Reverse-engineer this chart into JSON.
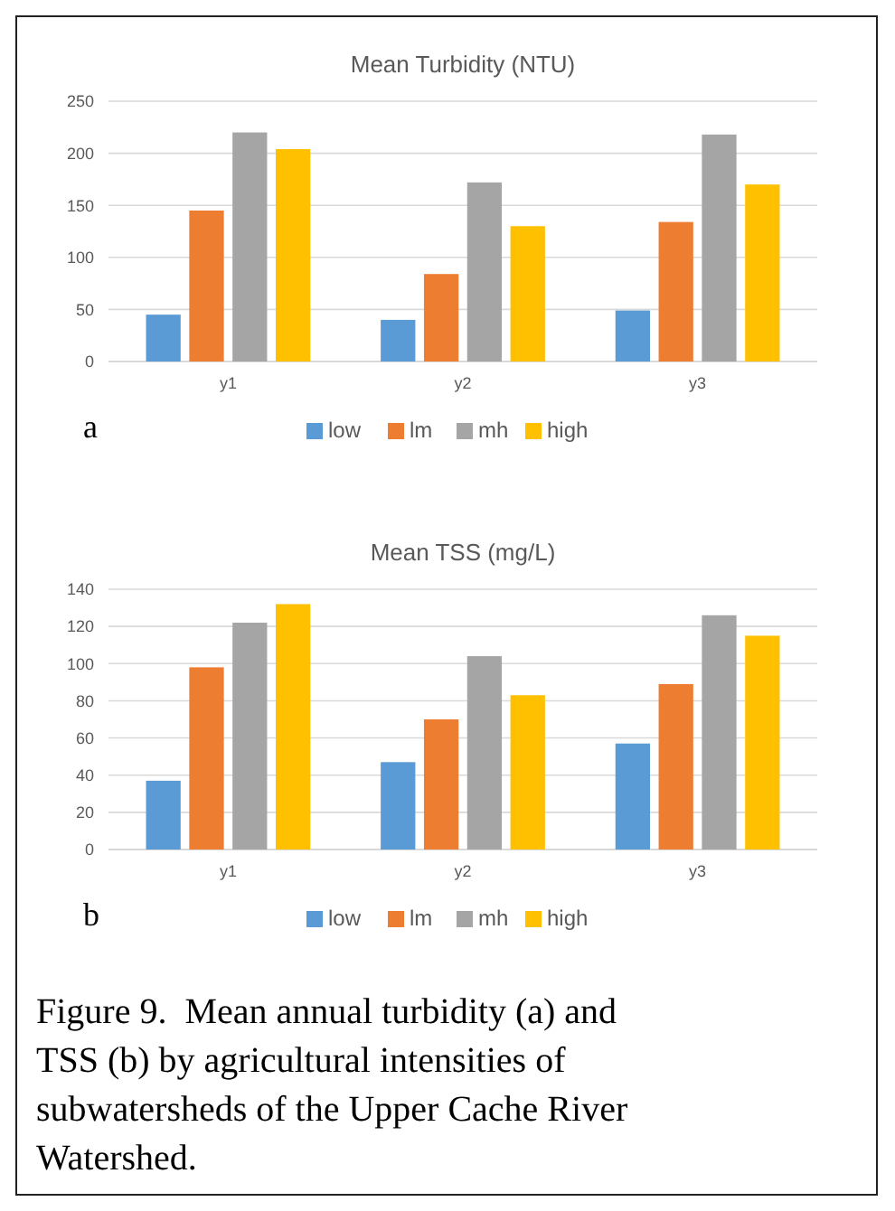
{
  "chart_data": [
    {
      "type": "bar",
      "title": "Mean Turbidity (NTU)",
      "categories": [
        "y1",
        "y2",
        "y3"
      ],
      "series": [
        {
          "name": "low",
          "color": "#5b9bd5",
          "values": [
            45,
            40,
            49
          ]
        },
        {
          "name": "lm",
          "color": "#ed7d31",
          "values": [
            145,
            84,
            134
          ]
        },
        {
          "name": "mh",
          "color": "#a5a5a5",
          "values": [
            220,
            172,
            218
          ]
        },
        {
          "name": "high",
          "color": "#ffc000",
          "values": [
            204,
            130,
            170
          ]
        }
      ],
      "ylim": [
        0,
        250
      ],
      "yticks": [
        0,
        50,
        100,
        150,
        200,
        250
      ],
      "grid": "y",
      "legend": "bottom",
      "annotations": [
        "a"
      ]
    },
    {
      "type": "bar",
      "title": "Mean TSS (mg/L)",
      "categories": [
        "y1",
        "y2",
        "y3"
      ],
      "series": [
        {
          "name": "low",
          "color": "#5b9bd5",
          "values": [
            37,
            47,
            57
          ]
        },
        {
          "name": "lm",
          "color": "#ed7d31",
          "values": [
            98,
            70,
            89
          ]
        },
        {
          "name": "mh",
          "color": "#a5a5a5",
          "values": [
            122,
            104,
            126
          ]
        },
        {
          "name": "high",
          "color": "#ffc000",
          "values": [
            132,
            83,
            115
          ]
        }
      ],
      "ylim": [
        0,
        140
      ],
      "yticks": [
        0,
        20,
        40,
        60,
        80,
        100,
        120,
        140
      ],
      "grid": "y",
      "legend": "bottom",
      "annotations": [
        "b",
        "Figure 9.  Mean annual turbidity (a) and TSS (b) by agricultural intensities of subwatersheds of the Upper Cache River Watershed."
      ]
    }
  ]
}
